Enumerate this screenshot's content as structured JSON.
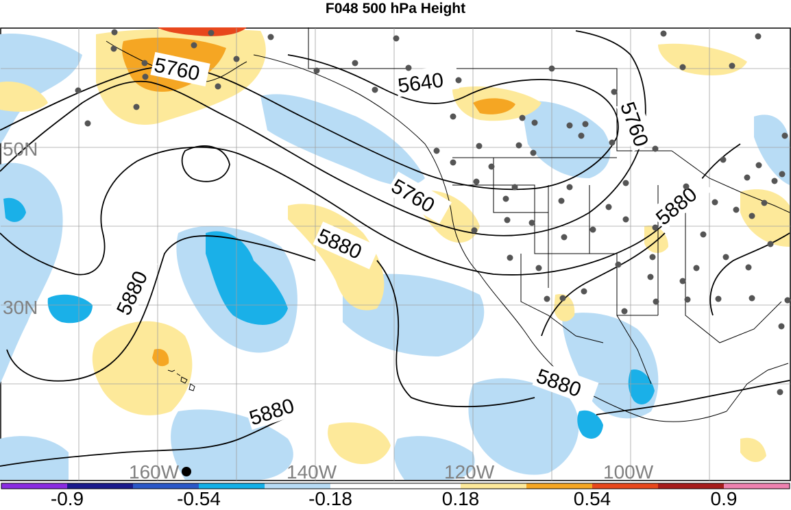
{
  "title": "F048 500 hPa Height",
  "map": {
    "lon_labels": [
      "160W",
      "140W",
      "120W",
      "100W"
    ],
    "lat_labels": [
      "50N",
      "30N"
    ],
    "contour_labels": [
      "5760",
      "5640",
      "5760",
      "5760",
      "5880",
      "5880",
      "5880",
      "5880",
      "5880"
    ],
    "colors": {
      "ocean_bg": "#ffffff",
      "light_blue": "#b8dcf5",
      "mid_blue": "#1ab0e8",
      "light_yellow": "#fde99a",
      "orange": "#f5a623",
      "contour": "#000000",
      "station": "#555555"
    }
  },
  "colorbar": {
    "labels": [
      "-0.9",
      "-0.54",
      "-0.18",
      "0.18",
      "0.54",
      "0.9"
    ],
    "colors": [
      "#8a2be2",
      "#1a1a8c",
      "#2a57c8",
      "#12b0e8",
      "#b8dcf5",
      "#ffffff",
      "#fde99a",
      "#f5a623",
      "#e8471c",
      "#a61c1c",
      "#ee82b0"
    ]
  }
}
